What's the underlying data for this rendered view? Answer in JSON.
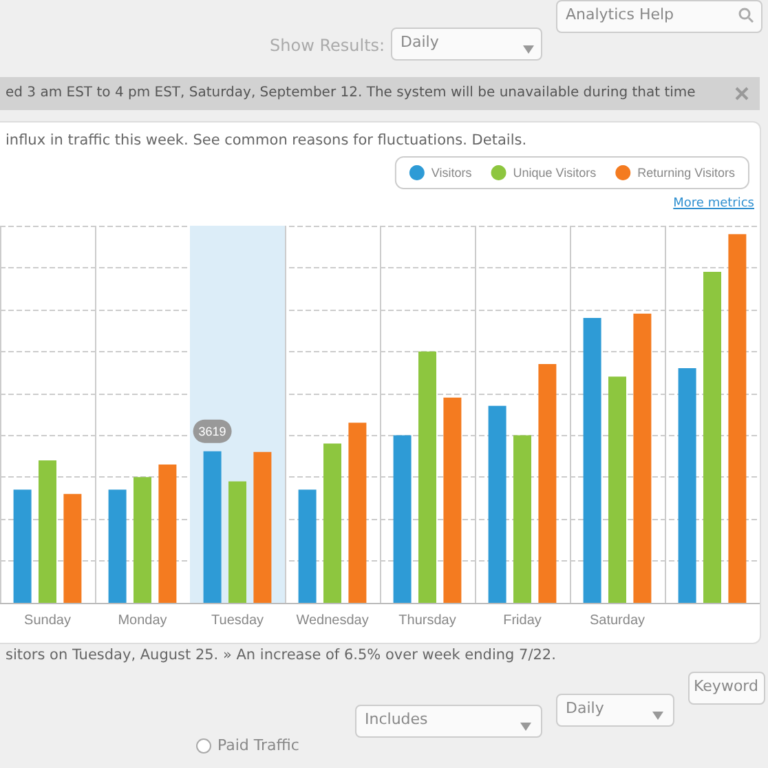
{
  "chart_data": {
    "type": "bar",
    "subtitle": "influx in traffic this week. See common reasons for fluctuations. Details.",
    "annotations": [
      "Show Results:",
      "Daily",
      "Analytics Help",
      "ed 3 am EST to 4 pm EST, Saturday, September 12. The system will be unavailable during that time",
      "More metrics",
      "sitors on Tuesday, August 25. » An increase of 6.5% over week ending 7/22.",
      "Paid Traffic",
      "Includes",
      "Daily",
      "Keyword"
    ],
    "categories": [
      "Sunday",
      "Monday",
      "Tuesday",
      "Wednesday",
      "Thursday",
      "Friday",
      "Saturday",
      null
    ],
    "tick_labels": "x",
    "series": [
      {
        "name": "Visitors",
        "color": "#2e9bd6",
        "values": [
          2700,
          2700,
          3619,
          2700,
          4000,
          4700,
          6800,
          5600
        ],
        "value_labels": [
          null,
          null,
          "3619",
          null,
          null,
          null,
          null,
          null
        ]
      },
      {
        "name": "Unique Visitors",
        "color": "#8dc63f",
        "values": [
          3400,
          3000,
          2900,
          3800,
          6000,
          4000,
          5400,
          7900
        ]
      },
      {
        "name": "Returning Visitors",
        "color": "#f47b20",
        "values": [
          2600,
          3300,
          3600,
          4300,
          4900,
          5700,
          6900,
          8800
        ]
      }
    ],
    "bands": [
      {
        "axis": "x",
        "from": "Tuesday",
        "to": "Tuesday",
        "color": "#dcedf8"
      }
    ],
    "grid": true,
    "legend": "top right"
  }
}
